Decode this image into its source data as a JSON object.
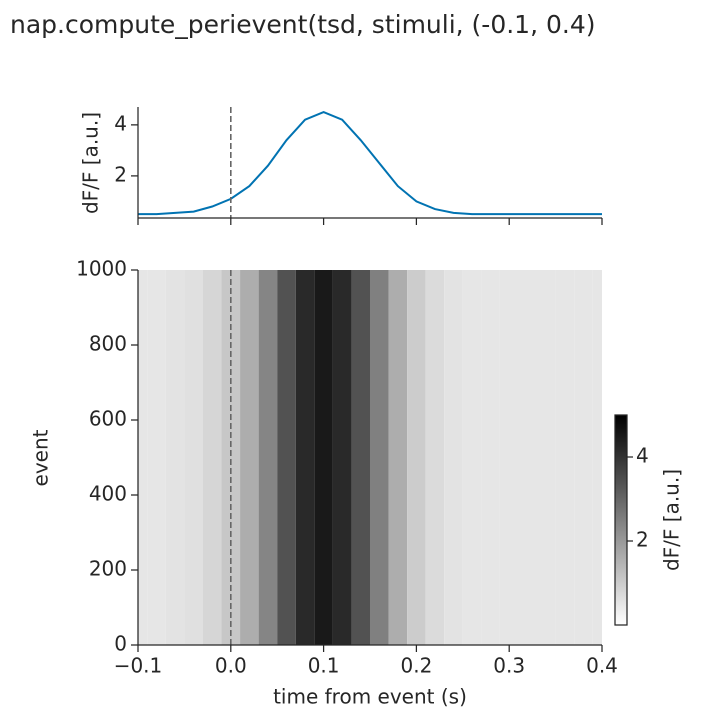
{
  "chart_data": [
    {
      "type": "line",
      "title": "nap.compute_perievent(tsd, stimuli, (-0.1, 0.4)",
      "ylabel": "dF/F [a.u.]",
      "color": "#0173b2",
      "x": [
        -0.1,
        -0.08,
        -0.06,
        -0.04,
        -0.02,
        0,
        0.02,
        0.04,
        0.06,
        0.08,
        0.1,
        0.12,
        0.14,
        0.16,
        0.18,
        0.2,
        0.22,
        0.24,
        0.26,
        0.28,
        0.3,
        0.32,
        0.34,
        0.36,
        0.38,
        0.4
      ],
      "values": [
        0.5,
        0.5,
        0.55,
        0.6,
        0.8,
        1.1,
        1.6,
        2.4,
        3.4,
        4.2,
        4.5,
        4.2,
        3.4,
        2.5,
        1.6,
        1.0,
        0.7,
        0.55,
        0.5,
        0.5,
        0.5,
        0.5,
        0.5,
        0.5,
        0.5,
        0.5
      ],
      "xlim": [
        -0.1,
        0.4
      ],
      "xticks": [
        -0.1,
        0,
        0.1,
        0.2,
        0.3,
        0.4
      ],
      "xtick_labels": false,
      "ylim": [
        0.35,
        4.7
      ],
      "yticks": [
        2,
        4
      ],
      "vline": 0
    },
    {
      "type": "heatmap",
      "xlabel": "time from event (s)",
      "ylabel": "event",
      "x": [
        -0.1,
        -0.08,
        -0.06,
        -0.04,
        -0.02,
        0,
        0.02,
        0.04,
        0.06,
        0.08,
        0.1,
        0.12,
        0.14,
        0.16,
        0.18,
        0.2,
        0.22,
        0.24,
        0.26,
        0.28,
        0.3,
        0.32,
        0.34,
        0.36,
        0.38,
        0.4
      ],
      "values": [
        0.5,
        0.5,
        0.55,
        0.6,
        0.8,
        1.1,
        1.6,
        2.4,
        3.4,
        4.2,
        4.5,
        4.2,
        3.4,
        2.5,
        1.6,
        1.0,
        0.7,
        0.55,
        0.5,
        0.5,
        0.5,
        0.5,
        0.5,
        0.5,
        0.5,
        0.5
      ],
      "xlim": [
        -0.1,
        0.4
      ],
      "xticks": [
        {
          "value": -0.1,
          "label": "−0.1"
        },
        {
          "value": 0,
          "label": "0.0"
        },
        0.1,
        0.2,
        0.3,
        0.4
      ],
      "ylim": [
        0,
        1000
      ],
      "yticks": [
        0,
        200,
        400,
        600,
        800,
        1000
      ],
      "vline": 0,
      "colorbar": {
        "label": "dF/F [a.u.]",
        "lim": [
          0,
          5
        ],
        "ticks": [
          2,
          4
        ]
      }
    }
  ]
}
